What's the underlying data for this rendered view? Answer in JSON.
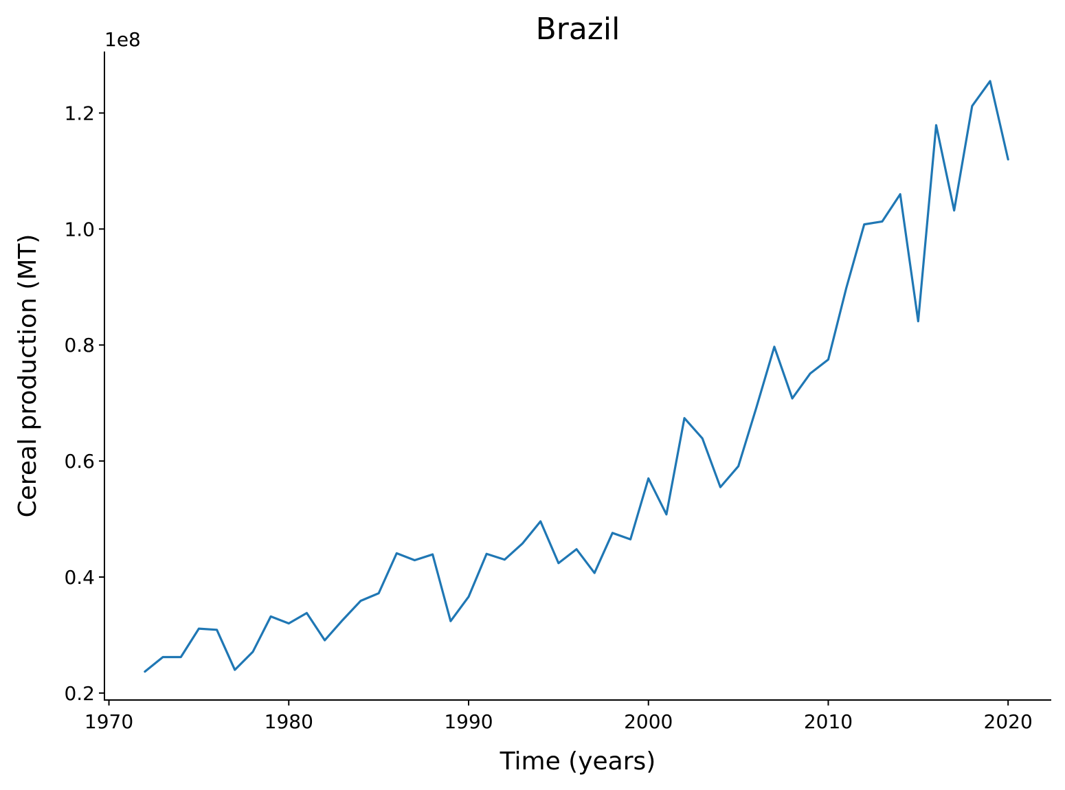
{
  "chart_data": {
    "type": "line",
    "title": "Brazil",
    "xlabel": "Time (years)",
    "ylabel": "Cereal production (MT)",
    "y_offset_label": "1e8",
    "xlim": [
      1969.75,
      2022.4
    ],
    "ylim": [
      0.188,
      1.306
    ],
    "x_ticks": [
      1970,
      1980,
      1990,
      2000,
      2010,
      2020
    ],
    "x_tick_labels": [
      "1970",
      "1980",
      "1990",
      "2000",
      "2010",
      "2020"
    ],
    "y_ticks": [
      0.2,
      0.4,
      0.6,
      0.8,
      1.0,
      1.2
    ],
    "y_tick_labels": [
      "0.2",
      "0.4",
      "0.6",
      "0.8",
      "1.0",
      "1.2"
    ],
    "grid": false,
    "color": "#1f77b4",
    "series": [
      {
        "x": [
          1972,
          1973,
          1974,
          1975,
          1976,
          1977,
          1978,
          1979,
          1980,
          1981,
          1982,
          1983,
          1984,
          1985,
          1986,
          1987,
          1988,
          1989,
          1990,
          1991,
          1992,
          1993,
          1994,
          1995,
          1996,
          1997,
          1998,
          1999,
          2000,
          2001,
          2002,
          2003,
          2004,
          2005,
          2006,
          2007,
          2008,
          2009,
          2010,
          2011,
          2012,
          2013,
          2014,
          2015,
          2016,
          2017,
          2018,
          2019,
          2020
        ],
        "values": [
          0.237,
          0.262,
          0.262,
          0.311,
          0.309,
          0.24,
          0.271,
          0.332,
          0.32,
          0.338,
          0.291,
          0.326,
          0.359,
          0.372,
          0.441,
          0.429,
          0.439,
          0.324,
          0.366,
          0.44,
          0.43,
          0.458,
          0.496,
          0.424,
          0.448,
          0.407,
          0.476,
          0.465,
          0.57,
          0.508,
          0.674,
          0.639,
          0.555,
          0.591,
          0.692,
          0.797,
          0.708,
          0.751,
          0.775,
          0.898,
          1.008,
          1.013,
          1.06,
          0.841,
          1.179,
          1.032,
          1.212,
          1.255,
          1.12
        ]
      }
    ]
  }
}
